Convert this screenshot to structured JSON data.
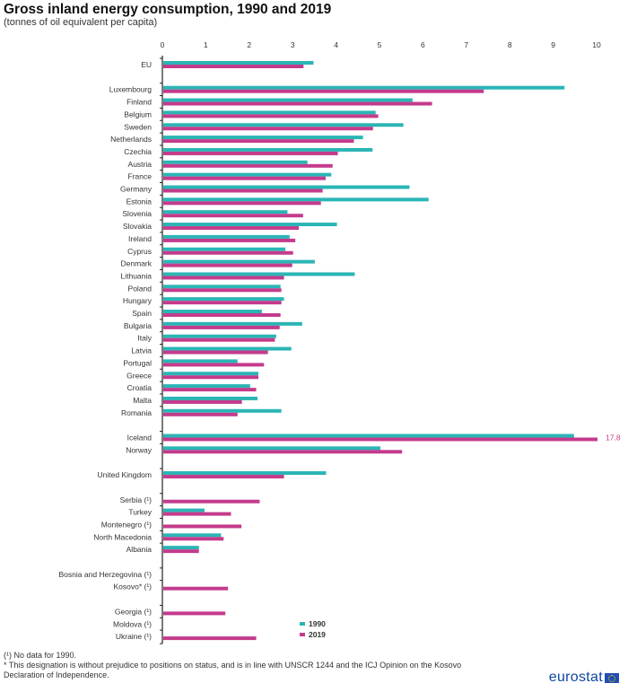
{
  "chart_data": {
    "type": "bar",
    "orientation": "horizontal",
    "title": "Gross inland energy consumption, 1990 and 2019",
    "subtitle": "(tonnes of oil equivalent per capita)",
    "xlabel": "",
    "ylabel": "",
    "xlim": [
      0,
      10
    ],
    "x_ticks": [
      "0",
      "1",
      "2",
      "3",
      "4",
      "5",
      "6",
      "7",
      "8",
      "9",
      "10"
    ],
    "legend": {
      "position": "bottom-right",
      "entries": [
        {
          "name": "1990",
          "color": "#2bb5b5"
        },
        {
          "name": "2019",
          "color": "#c43b8c"
        }
      ]
    },
    "groups": [
      {
        "categories": [
          "EU"
        ]
      },
      {
        "categories": [
          "Luxembourg",
          "Finland",
          "Belgium",
          "Sweden",
          "Netherlands",
          "Czechia",
          "Austria",
          "France",
          "Germany",
          "Estonia",
          "Slovenia",
          "Slovakia",
          "Ireland",
          "Cyprus",
          "Denmark",
          "Lithuania",
          "Poland",
          "Hungary",
          "Spain",
          "Bulgaria",
          "Italy",
          "Latvia",
          "Portugal",
          "Greece",
          "Croatia",
          "Malta",
          "Romania"
        ]
      },
      {
        "categories": [
          "Iceland",
          "Norway"
        ]
      },
      {
        "categories": [
          "United Kingdom"
        ]
      },
      {
        "categories": [
          "Serbia (¹)",
          "Turkey",
          "Montenegro (¹)",
          "North Macedonia",
          "Albania"
        ]
      },
      {
        "categories": [
          "Bosnia and Herzegovina (¹)",
          "Kosovo* (¹)"
        ]
      },
      {
        "categories": [
          "Georgia (¹)",
          "Moldova (¹)",
          "Ukraine (¹)"
        ]
      }
    ],
    "categories": [
      "EU",
      "Luxembourg",
      "Finland",
      "Belgium",
      "Sweden",
      "Netherlands",
      "Czechia",
      "Austria",
      "France",
      "Germany",
      "Estonia",
      "Slovenia",
      "Slovakia",
      "Ireland",
      "Cyprus",
      "Denmark",
      "Lithuania",
      "Poland",
      "Hungary",
      "Spain",
      "Bulgaria",
      "Italy",
      "Latvia",
      "Portugal",
      "Greece",
      "Croatia",
      "Malta",
      "Romania",
      "Iceland",
      "Norway",
      "United Kingdom",
      "Serbia (¹)",
      "Turkey",
      "Montenegro (¹)",
      "North Macedonia",
      "Albania",
      "Bosnia and Herzegovina (¹)",
      "Kosovo* (¹)",
      "Georgia (¹)",
      "Moldova (¹)",
      "Ukraine (¹)"
    ],
    "series": [
      {
        "name": "1990",
        "color": "#2bb5b5",
        "values": [
          3.46,
          9.24,
          5.74,
          4.89,
          5.53,
          4.6,
          4.82,
          3.32,
          3.87,
          5.67,
          6.11,
          2.86,
          4.0,
          2.91,
          2.81,
          3.49,
          4.41,
          2.7,
          2.78,
          2.27,
          3.2,
          2.6,
          2.95,
          1.71,
          2.19,
          2.0,
          2.17,
          2.72,
          9.46,
          5.0,
          3.75,
          null,
          0.95,
          null,
          1.33,
          0.82,
          null,
          null,
          null,
          null,
          null
        ]
      },
      {
        "name": "2019",
        "color": "#c43b8c",
        "values": [
          3.23,
          7.38,
          6.19,
          4.95,
          4.83,
          4.39,
          4.02,
          3.9,
          3.74,
          3.67,
          3.63,
          3.22,
          3.12,
          3.04,
          2.99,
          2.97,
          2.78,
          2.72,
          2.72,
          2.7,
          2.68,
          2.57,
          2.41,
          2.32,
          2.19,
          2.14,
          1.81,
          1.71,
          17.8,
          5.5,
          2.78,
          2.22,
          1.56,
          1.8,
          1.39,
          0.82,
          null,
          1.49,
          1.43,
          null,
          2.14
        ]
      }
    ],
    "annotations": [
      {
        "category": "Iceland",
        "series": "2019",
        "text": "17.8",
        "note": "bar truncated at axis max"
      }
    ]
  },
  "footnotes": [
    "(¹) No data for 1990.",
    "* This designation is without prejudice to positions on status, and is in line with UNSCR 1244 and the ICJ Opinion on the Kosovo",
    "Declaration of Independence."
  ],
  "brand": "eurostat"
}
